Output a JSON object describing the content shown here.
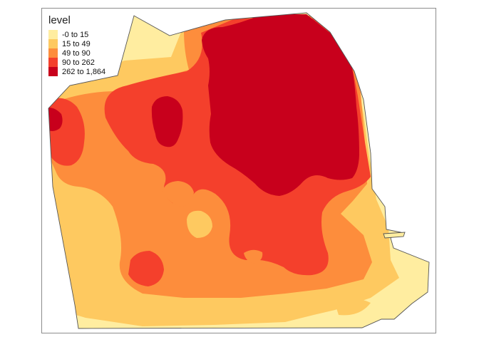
{
  "legend": {
    "title": "level",
    "items": [
      {
        "label": "-0 to 15",
        "color": "#FFEDA0"
      },
      {
        "label": "15 to 49",
        "color": "#FEC960"
      },
      {
        "label": "49 to 90",
        "color": "#FD8D3C"
      },
      {
        "label": "90 to 262",
        "color": "#F4402C"
      },
      {
        "label": "262 to 1,864",
        "color": "#C8001C"
      }
    ]
  },
  "map": {
    "boundary_color": "#555555",
    "frame_color": "#8c8c8c"
  }
}
